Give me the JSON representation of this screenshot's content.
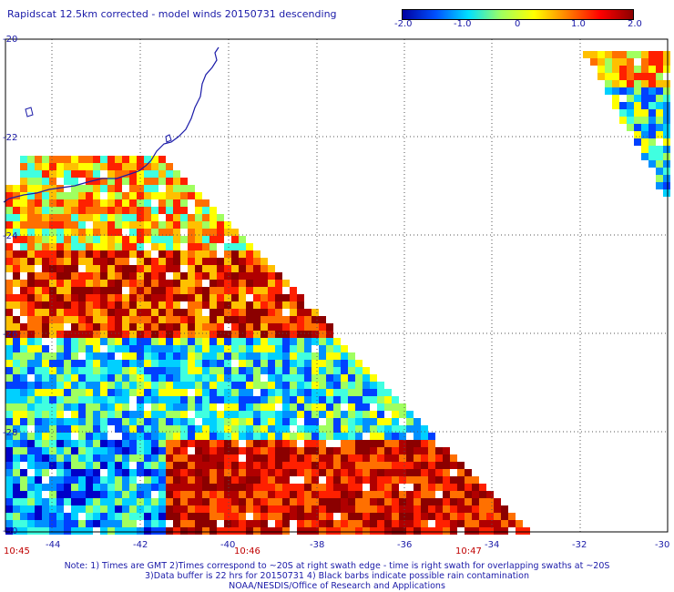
{
  "title": "Rapidscat 12.5km corrected - model winds 20150731 descending",
  "colorbar": {
    "ticks": [
      "-2.0",
      "-1.0",
      "0",
      "1.0",
      "2.0"
    ],
    "stops": [
      "#0000a0",
      "#0050ff",
      "#00e0ff",
      "#a0ff60",
      "#ffff00",
      "#ff8000",
      "#ff0000",
      "#8b0000"
    ]
  },
  "lat_labels": [
    "-20",
    "-22",
    "-24",
    "-26",
    "-28",
    "-30"
  ],
  "lon_labels": [
    "-44",
    "-42",
    "-40",
    "-38",
    "-36",
    "-34",
    "-32",
    "-30"
  ],
  "time_labels": [
    "10:45",
    "10:46",
    "10:47"
  ],
  "notes": [
    "Note: 1) Times are GMT 2)Times correspond to ~20S at right swath edge - time is right swath for overlapping swaths at ~20S",
    "3)Data buffer is 22 hrs for 20150731 4) Black barbs indicate possible rain contamination",
    "NOAA/NESDIS/Office of Research and Applications"
  ],
  "colors": {
    "text": "#1a1aa8",
    "time": "#c00000",
    "grid": "#555555"
  }
}
